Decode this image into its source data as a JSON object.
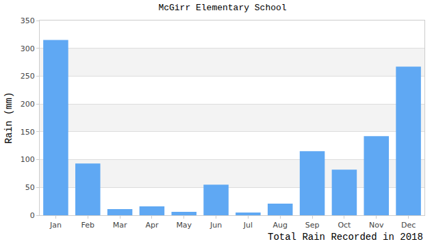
{
  "chart_data": {
    "type": "bar",
    "title": "McGirr Elementary School",
    "ylabel": "Rain (mm)",
    "xlabel": "Total Rain Recorded in 2018",
    "categories": [
      "Jan",
      "Feb",
      "Mar",
      "Apr",
      "May",
      "Jun",
      "Jul",
      "Aug",
      "Sep",
      "Oct",
      "Nov",
      "Dec"
    ],
    "values": [
      315,
      93,
      11,
      16,
      6,
      55,
      5,
      21,
      115,
      82,
      142,
      267
    ],
    "color": "#5fa8f3",
    "ylim": [
      0,
      350
    ],
    "yticks": [
      0,
      50,
      100,
      150,
      200,
      250,
      300,
      350
    ],
    "grid": true
  }
}
